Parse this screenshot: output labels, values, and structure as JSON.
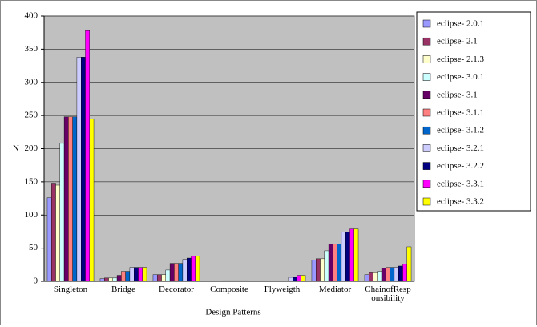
{
  "chart_data": {
    "type": "bar",
    "y_label": "N",
    "x_label": "Design Patterns",
    "categories": [
      "Singleton",
      "Bridge",
      "Decorator",
      "Composite",
      "Flyweigth",
      "Mediator",
      "ChainofResponsibility"
    ],
    "ylim": [
      0,
      400
    ],
    "yticks": [
      0,
      50,
      100,
      150,
      200,
      250,
      300,
      350,
      400
    ],
    "grid": true,
    "series": [
      {
        "name": "eclipse- 2.0.1",
        "color": "#9999ff",
        "values": [
          126,
          4,
          10,
          0,
          0,
          32,
          10
        ]
      },
      {
        "name": "eclipse- 2.1",
        "color": "#993366",
        "values": [
          148,
          5,
          10,
          0,
          0,
          34,
          14
        ]
      },
      {
        "name": "eclipse- 2.1.3",
        "color": "#ffffcc",
        "values": [
          145,
          5,
          10,
          0,
          0,
          34,
          14
        ]
      },
      {
        "name": "eclipse- 3.0.1",
        "color": "#ccffff",
        "values": [
          208,
          5,
          17,
          0,
          0,
          46,
          15
        ]
      },
      {
        "name": "eclipse- 3.1",
        "color": "#660066",
        "values": [
          248,
          9,
          27,
          1,
          0,
          56,
          20
        ]
      },
      {
        "name": "eclipse- 3.1.1",
        "color": "#ff8080",
        "values": [
          248,
          15,
          27,
          1,
          0,
          56,
          21
        ]
      },
      {
        "name": "eclipse- 3.1.2",
        "color": "#0066cc",
        "values": [
          248,
          15,
          27,
          1,
          0,
          56,
          21
        ]
      },
      {
        "name": "eclipse- 3.2.1",
        "color": "#ccccff",
        "values": [
          338,
          21,
          33,
          1,
          6,
          74,
          21
        ]
      },
      {
        "name": "eclipse- 3.2.2",
        "color": "#000080",
        "values": [
          338,
          21,
          35,
          1,
          6,
          74,
          23
        ]
      },
      {
        "name": "eclipse- 3.3.1",
        "color": "#ff00ff",
        "values": [
          378,
          21,
          38,
          1,
          9,
          79,
          26
        ]
      },
      {
        "name": "eclipse- 3.3.2",
        "color": "#ffff00",
        "values": [
          245,
          21,
          38,
          0,
          9,
          79,
          52
        ]
      }
    ]
  }
}
